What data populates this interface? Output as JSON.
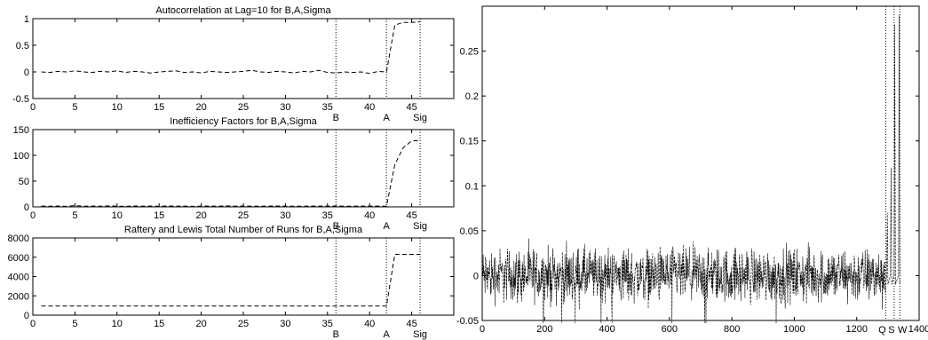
{
  "chart_data": [
    {
      "type": "line",
      "title": "Autocorrelation at Lag=10 for B,A,Sigma",
      "xlim": [
        0,
        50
      ],
      "ylim": [
        -0.5,
        1
      ],
      "xticks": [
        0,
        5,
        10,
        15,
        20,
        25,
        30,
        35,
        40,
        45
      ],
      "yticks": [
        -0.5,
        0,
        0.5,
        1
      ],
      "ytick_labels": [
        "-0.5",
        "0",
        "0.5",
        "1"
      ],
      "markers": [
        {
          "label": "B",
          "x": 36
        },
        {
          "label": "A",
          "x": 42
        },
        {
          "label": "Sig",
          "x": 46
        }
      ],
      "series": [
        {
          "x": [
            1,
            2,
            3,
            4,
            5,
            6,
            7,
            8,
            9,
            10,
            11,
            12,
            13,
            14,
            15,
            16,
            17,
            18,
            19,
            20,
            21,
            22,
            23,
            24,
            25,
            26,
            27,
            28,
            29,
            30,
            31,
            32,
            33,
            34,
            35,
            36,
            37,
            38,
            39,
            40,
            41,
            42,
            43,
            44,
            45,
            46
          ],
          "values": [
            0.0,
            -0.01,
            0.01,
            0.0,
            0.02,
            0.0,
            -0.01,
            0.01,
            0.0,
            0.02,
            -0.01,
            0.01,
            0.0,
            -0.02,
            0.0,
            0.01,
            0.02,
            -0.01,
            0.0,
            -0.02,
            0.01,
            0.0,
            -0.01,
            0.0,
            0.01,
            0.03,
            0.0,
            -0.01,
            0.01,
            0.0,
            -0.02,
            0.01,
            0.0,
            0.03,
            -0.01,
            -0.02,
            0.0,
            -0.01,
            0.0,
            -0.03,
            0.01,
            0.0,
            0.88,
            0.93,
            0.93,
            0.94
          ]
        }
      ]
    },
    {
      "type": "line",
      "title": "Inefficiency Factors for B,A,Sigma",
      "xlim": [
        0,
        50
      ],
      "ylim": [
        0,
        150
      ],
      "xticks": [
        0,
        5,
        10,
        15,
        20,
        25,
        30,
        35,
        40,
        45
      ],
      "yticks": [
        0,
        50,
        100,
        150
      ],
      "ytick_labels": [
        "0",
        "50",
        "100",
        "150"
      ],
      "markers": [
        {
          "label": "B",
          "x": 36
        },
        {
          "label": "A",
          "x": 42
        },
        {
          "label": "Sig",
          "x": 46
        }
      ],
      "series": [
        {
          "x": [
            1,
            2,
            3,
            4,
            5,
            6,
            7,
            8,
            9,
            10,
            11,
            12,
            13,
            14,
            15,
            16,
            17,
            18,
            19,
            20,
            21,
            22,
            23,
            24,
            25,
            26,
            27,
            28,
            29,
            30,
            31,
            32,
            33,
            34,
            35,
            36,
            37,
            38,
            39,
            40,
            41,
            42,
            43,
            44,
            45,
            46
          ],
          "values": [
            1.5,
            1.2,
            1.8,
            1.1,
            2.5,
            1.3,
            1.6,
            1.2,
            1.9,
            1.4,
            1.1,
            1.7,
            1.3,
            1.5,
            1.2,
            1.8,
            1.4,
            1.6,
            1.1,
            1.3,
            1.5,
            1.2,
            1.9,
            1.4,
            1.6,
            1.3,
            1.2,
            1.5,
            1.7,
            1.3,
            1.4,
            1.2,
            1.6,
            1.5,
            1.3,
            1.8,
            1.2,
            1.4,
            1.6,
            1.3,
            1.5,
            1.2,
            82,
            115,
            128,
            129
          ]
        }
      ]
    },
    {
      "type": "line",
      "title": "Raftery and Lewis Total Number of Runs for B,A,Sigma",
      "xlim": [
        0,
        50
      ],
      "ylim": [
        0,
        8000
      ],
      "xticks": [
        0,
        5,
        10,
        15,
        20,
        25,
        30,
        35,
        40,
        45
      ],
      "yticks": [
        0,
        2000,
        4000,
        6000,
        8000
      ],
      "ytick_labels": [
        "0",
        "2000",
        "4000",
        "6000",
        "8000"
      ],
      "markers": [
        {
          "label": "B",
          "x": 36
        },
        {
          "label": "A",
          "x": 42
        },
        {
          "label": "Sig",
          "x": 46
        }
      ],
      "series": [
        {
          "x": [
            1,
            42,
            43,
            46
          ],
          "values": [
            937,
            937,
            6300,
            6300
          ]
        }
      ]
    },
    {
      "type": "line",
      "title": "",
      "xlim": [
        0,
        1400
      ],
      "ylim": [
        -0.05,
        0.3
      ],
      "xticks": [
        0,
        200,
        400,
        600,
        800,
        1000,
        1200,
        1400
      ],
      "yticks": [
        -0.05,
        0,
        0.05,
        0.1,
        0.15,
        0.2,
        0.25
      ],
      "ytick_labels": [
        "-0.05",
        "0",
        "0.05",
        "0.1",
        "0.15",
        "0.2",
        "0.25"
      ],
      "markers": [
        {
          "label": "Q",
          "x": 1293
        },
        {
          "label": "S",
          "x": 1320
        },
        {
          "label": "W",
          "x": 1338
        }
      ],
      "series": [
        {
          "description_of_shape": "noise",
          "noise_range": [
            -0.045,
            0.045
          ],
          "noise_x_range": [
            1,
            1293
          ],
          "spikes": [
            {
              "x": 1298,
              "value": 0.07
            },
            {
              "x": 1310,
              "value": 0.12
            },
            {
              "x": 1322,
              "value": 0.28
            },
            {
              "x": 1336,
              "value": 0.29
            }
          ]
        }
      ]
    }
  ]
}
